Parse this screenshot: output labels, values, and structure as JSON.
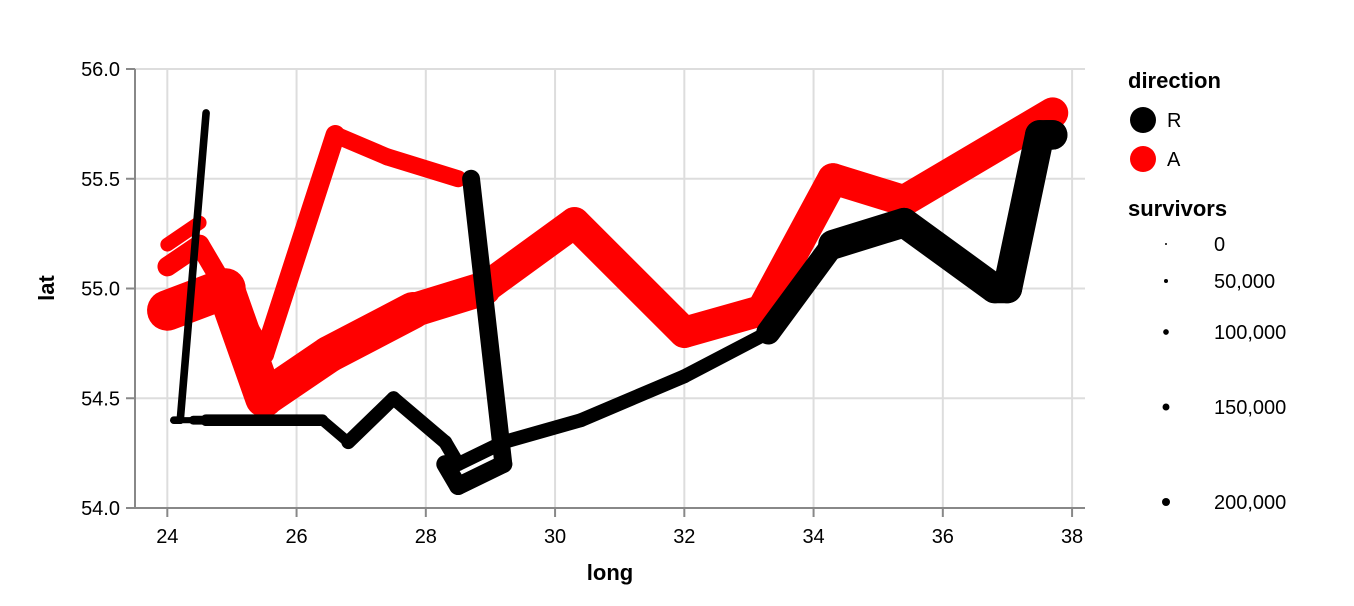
{
  "chart_data": {
    "type": "line",
    "xlabel": "long",
    "ylabel": "lat",
    "xlim": [
      23.5,
      38.2
    ],
    "ylim": [
      54.0,
      56.0
    ],
    "x_ticks": [
      "24",
      "26",
      "28",
      "30",
      "32",
      "34",
      "36",
      "38"
    ],
    "y_ticks": [
      "54.0",
      "54.5",
      "55.0",
      "55.5",
      "56.0"
    ],
    "grid": true,
    "legend_placement": "right",
    "direction_legend": {
      "title": "direction",
      "items": [
        {
          "label": "R",
          "color": "#000000"
        },
        {
          "label": "A",
          "color": "#ff0000"
        }
      ]
    },
    "size_legend": {
      "title": "survivors",
      "items": [
        {
          "label": "0",
          "value": 0
        },
        {
          "label": "50,000",
          "value": 50000
        },
        {
          "label": "100,000",
          "value": 100000
        },
        {
          "label": "150,000",
          "value": 150000
        },
        {
          "label": "200,000",
          "value": 200000
        }
      ]
    },
    "series": [
      {
        "direction": "A",
        "group": 1,
        "color": "#ff0000",
        "points": [
          {
            "long": 37.7,
            "lat": 55.8,
            "survivors": 100000
          },
          {
            "long": 35.4,
            "lat": 55.4,
            "survivors": 100000
          },
          {
            "long": 34.3,
            "lat": 55.5,
            "survivors": 100000
          },
          {
            "long": 33.2,
            "lat": 54.9,
            "survivors": 100000
          },
          {
            "long": 32.0,
            "lat": 54.8,
            "survivors": 100000
          },
          {
            "long": 30.3,
            "lat": 55.3,
            "survivors": 100000
          },
          {
            "long": 28.9,
            "lat": 55.0,
            "survivors": 120000
          },
          {
            "long": 27.8,
            "lat": 54.9,
            "survivors": 140000
          },
          {
            "long": 26.5,
            "lat": 54.7,
            "survivors": 140000
          },
          {
            "long": 25.5,
            "lat": 54.5,
            "survivors": 150000
          },
          {
            "long": 24.9,
            "lat": 55.0,
            "survivors": 170000
          },
          {
            "long": 24.0,
            "lat": 54.9,
            "survivors": 200000
          }
        ]
      },
      {
        "direction": "A",
        "group": 2,
        "color": "#ff0000",
        "points": [
          {
            "long": 24.0,
            "lat": 55.1,
            "survivors": 40000
          },
          {
            "long": 24.5,
            "lat": 55.2,
            "survivors": 40000
          },
          {
            "long": 25.5,
            "lat": 54.7,
            "survivors": 40000
          },
          {
            "long": 26.6,
            "lat": 55.7,
            "survivors": 30000
          },
          {
            "long": 27.4,
            "lat": 55.6,
            "survivors": 30000
          },
          {
            "long": 28.5,
            "lat": 55.5,
            "survivors": 30000
          }
        ]
      },
      {
        "direction": "A",
        "group": 3,
        "color": "#ff0000",
        "points": [
          {
            "long": 24.0,
            "lat": 55.2,
            "survivors": 20000
          },
          {
            "long": 24.5,
            "lat": 55.3,
            "survivors": 20000
          }
        ]
      },
      {
        "direction": "R",
        "group": 1,
        "color": "#000000",
        "points": [
          {
            "long": 37.6,
            "lat": 55.7,
            "survivors": 90000
          },
          {
            "long": 37.7,
            "lat": 55.7,
            "survivors": 90000
          },
          {
            "long": 37.5,
            "lat": 55.7,
            "survivors": 90000
          },
          {
            "long": 37.0,
            "lat": 55.0,
            "survivors": 90000
          },
          {
            "long": 36.8,
            "lat": 55.0,
            "survivors": 90000
          },
          {
            "long": 35.4,
            "lat": 55.3,
            "survivors": 90000
          },
          {
            "long": 34.3,
            "lat": 55.2,
            "survivors": 60000
          },
          {
            "long": 33.3,
            "lat": 54.8,
            "survivors": 20000
          },
          {
            "long": 32.0,
            "lat": 54.6,
            "survivors": 20000
          },
          {
            "long": 30.4,
            "lat": 54.4,
            "survivors": 20000
          },
          {
            "long": 29.2,
            "lat": 54.3,
            "survivors": 20000
          },
          {
            "long": 28.5,
            "lat": 54.2,
            "survivors": 20000
          },
          {
            "long": 28.3,
            "lat": 54.3,
            "survivors": 20000
          },
          {
            "long": 27.5,
            "lat": 54.5,
            "survivors": 20000
          },
          {
            "long": 26.8,
            "lat": 54.3,
            "survivors": 12000
          },
          {
            "long": 26.4,
            "lat": 54.4,
            "survivors": 14000
          },
          {
            "long": 24.6,
            "lat": 54.4,
            "survivors": 8000
          },
          {
            "long": 24.4,
            "lat": 54.4,
            "survivors": 4000
          },
          {
            "long": 24.2,
            "lat": 54.4,
            "survivors": 4000
          },
          {
            "long": 24.1,
            "lat": 54.4,
            "survivors": 4000
          }
        ]
      },
      {
        "direction": "R",
        "group": 2,
        "color": "#000000",
        "points": [
          {
            "long": 28.7,
            "lat": 55.5,
            "survivors": 33000
          },
          {
            "long": 29.2,
            "lat": 54.2,
            "survivors": 33000
          },
          {
            "long": 28.5,
            "lat": 54.1,
            "survivors": 33000
          },
          {
            "long": 28.3,
            "lat": 54.2,
            "survivors": 33000
          }
        ]
      },
      {
        "direction": "R",
        "group": 3,
        "color": "#000000",
        "points": [
          {
            "long": 24.1,
            "lat": 54.4,
            "survivors": 6000
          },
          {
            "long": 24.2,
            "lat": 54.4,
            "survivors": 6000
          },
          {
            "long": 24.6,
            "lat": 55.8,
            "survivors": 6000
          }
        ]
      }
    ]
  }
}
